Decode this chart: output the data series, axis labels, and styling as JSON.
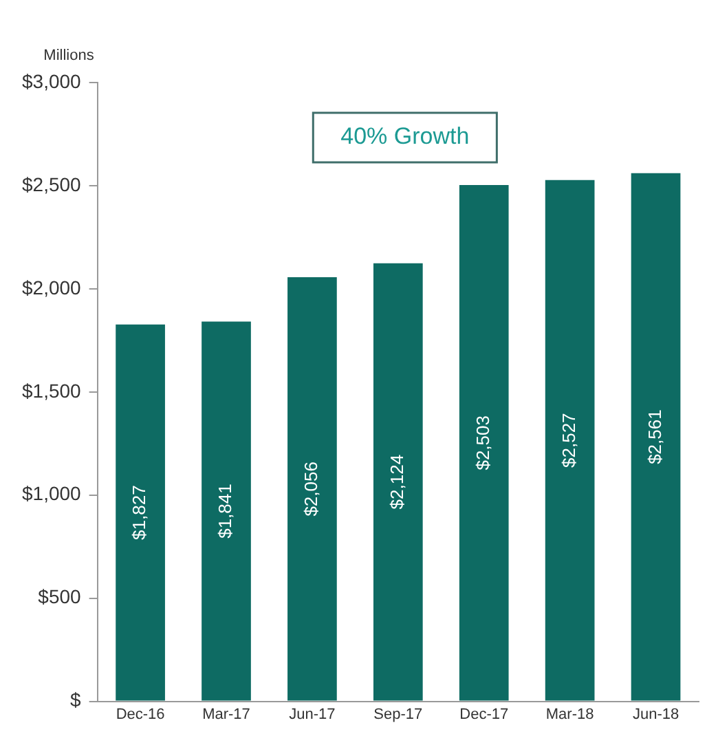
{
  "chart_data": {
    "type": "bar",
    "ylabel": "Millions",
    "annotations": [
      "40% Growth"
    ],
    "categories": [
      "Dec-16",
      "Mar-17",
      "Jun-17",
      "Sep-17",
      "Dec-17",
      "Mar-18",
      "Jun-18"
    ],
    "values": [
      1827,
      1841,
      2056,
      2124,
      2503,
      2527,
      2561
    ],
    "value_labels": [
      "$1,827",
      "$1,841",
      "$2,056",
      "$2,124",
      "$2,503",
      "$2,527",
      "$2,561"
    ],
    "color": "#0e6b63",
    "ylim": [
      0,
      3000
    ],
    "yticks": [
      {
        "value": 0,
        "label": "$"
      },
      {
        "value": 500,
        "label": "$500"
      },
      {
        "value": 1000,
        "label": "$1,000"
      },
      {
        "value": 1500,
        "label": "$1,500"
      },
      {
        "value": 2000,
        "label": "$2,000"
      },
      {
        "value": 2500,
        "label": "$2,500"
      },
      {
        "value": 3000,
        "label": "$3,000"
      }
    ],
    "grid": false,
    "legend": false
  }
}
